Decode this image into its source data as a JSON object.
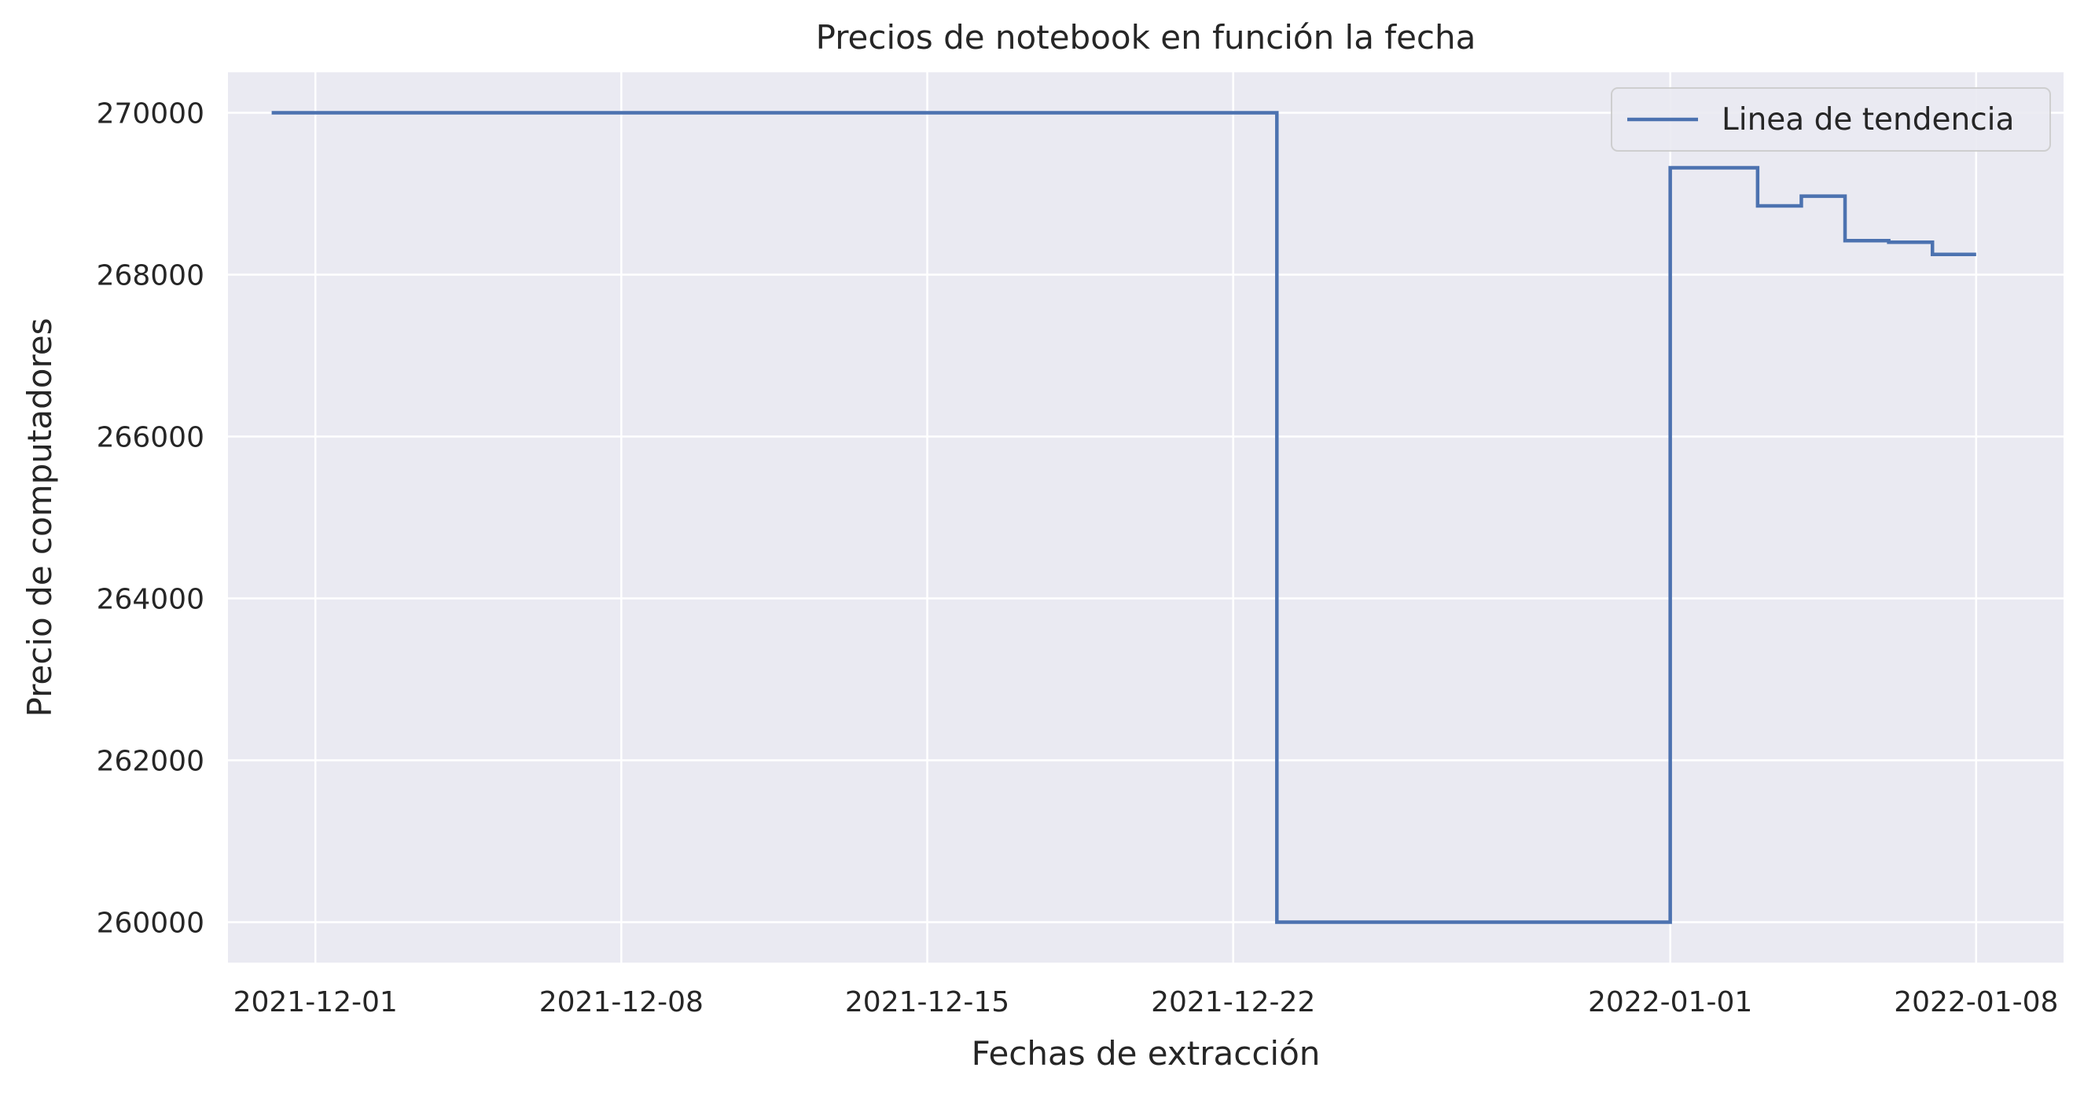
{
  "chart_data": {
    "type": "line",
    "drawstyle": "steps",
    "title": "Precios de notebook en función la fecha",
    "xlabel": "Fechas de extracción",
    "ylabel": "Precio de computadores",
    "x_axis": {
      "type": "date",
      "range": [
        "2021-11-29",
        "2022-01-10"
      ],
      "ticks": [
        "2021-12-01",
        "2021-12-08",
        "2021-12-15",
        "2021-12-22",
        "2022-01-01",
        "2022-01-08"
      ]
    },
    "y_axis": {
      "range": [
        259500,
        270500
      ],
      "ticks": [
        260000,
        262000,
        264000,
        266000,
        268000,
        270000
      ],
      "tick_labels": [
        "260000",
        "262000",
        "264000",
        "266000",
        "268000",
        "270000"
      ]
    },
    "grid": true,
    "legend_position": "top-right",
    "series": [
      {
        "name": "Linea de tendencia",
        "color": "#4c72b0",
        "points": [
          {
            "x": "2021-11-30",
            "y": 270000
          },
          {
            "x": "2021-12-23",
            "y": 260000
          },
          {
            "x": "2022-01-01",
            "y": 269320
          },
          {
            "x": "2022-01-03",
            "y": 268850
          },
          {
            "x": "2022-01-04",
            "y": 268970
          },
          {
            "x": "2022-01-05",
            "y": 268420
          },
          {
            "x": "2022-01-06",
            "y": 268400
          },
          {
            "x": "2022-01-07",
            "y": 268250
          },
          {
            "x": "2022-01-08",
            "y": 268250
          }
        ]
      }
    ],
    "colors": {
      "plot_background": "#eaeaf2",
      "grid": "#ffffff",
      "text": "#262626"
    }
  }
}
